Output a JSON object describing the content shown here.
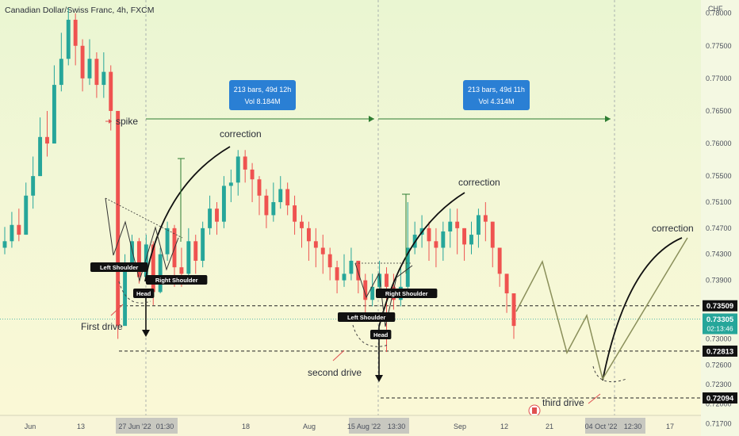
{
  "chart_data": {
    "type": "candlestick",
    "title": "Canadian Dollar/Swiss Franc, 4h, FXCM",
    "currency": "CHF",
    "ylim": [
      0.7151,
      0.7813
    ],
    "y_ticks": [
      "0.78000",
      "0.77500",
      "0.77000",
      "0.76500",
      "0.76000",
      "0.75500",
      "0.75100",
      "0.74700",
      "0.74300",
      "0.73900",
      "0.73500",
      "0.73000",
      "0.72600",
      "0.72300",
      "0.72000",
      "0.71700"
    ],
    "x_ticks": [
      "Jun",
      "13",
      "27 Jun '22",
      "01:30",
      "18",
      "Aug",
      "15 Aug '22",
      "13:30",
      "Sep",
      "12",
      "21",
      "04 Oct '22",
      "12:30",
      "17"
    ],
    "price_path": [
      [
        0.745,
        0.7472,
        0.743
      ],
      [
        0.7475,
        0.7495,
        0.744
      ],
      [
        0.746,
        0.75,
        0.745
      ],
      [
        0.752,
        0.754,
        0.746
      ],
      [
        0.755,
        0.758,
        0.75
      ],
      [
        0.761,
        0.764,
        0.755
      ],
      [
        0.76,
        0.765,
        0.758
      ],
      [
        0.769,
        0.772,
        0.76
      ],
      [
        0.773,
        0.777,
        0.768
      ],
      [
        0.779,
        0.7808,
        0.772
      ],
      [
        0.775,
        0.78,
        0.772
      ],
      [
        0.77,
        0.776,
        0.768
      ],
      [
        0.773,
        0.776,
        0.769
      ],
      [
        0.769,
        0.774,
        0.767
      ],
      [
        0.771,
        0.774,
        0.767
      ],
      [
        0.765,
        0.772,
        0.762
      ],
      [
        0.732,
        0.765,
        0.73
      ],
      [
        0.7415,
        0.743,
        0.7395
      ],
      [
        0.745,
        0.746,
        0.741
      ],
      [
        0.7395,
        0.7455,
        0.7385
      ],
      [
        0.7445,
        0.746,
        0.739
      ],
      [
        0.7372,
        0.745,
        0.7352
      ],
      [
        0.743,
        0.744,
        0.737
      ],
      [
        0.747,
        0.748,
        0.742
      ],
      [
        0.741,
        0.7475,
        0.738
      ],
      [
        0.74,
        0.744,
        0.738
      ],
      [
        0.745,
        0.747,
        0.7395
      ],
      [
        0.742,
        0.746,
        0.74
      ],
      [
        0.747,
        0.748,
        0.741
      ],
      [
        0.75,
        0.752,
        0.746
      ],
      [
        0.748,
        0.751,
        0.746
      ],
      [
        0.7535,
        0.755,
        0.747
      ],
      [
        0.754,
        0.756,
        0.751
      ],
      [
        0.758,
        0.759,
        0.752
      ],
      [
        0.756,
        0.759,
        0.754
      ],
      [
        0.7545,
        0.757,
        0.751
      ],
      [
        0.752,
        0.755,
        0.749
      ],
      [
        0.749,
        0.753,
        0.747
      ],
      [
        0.751,
        0.754,
        0.748
      ],
      [
        0.753,
        0.755,
        0.75
      ],
      [
        0.7505,
        0.754,
        0.749
      ],
      [
        0.748,
        0.752,
        0.746
      ],
      [
        0.747,
        0.749,
        0.744
      ],
      [
        0.745,
        0.748,
        0.742
      ],
      [
        0.744,
        0.747,
        0.741
      ],
      [
        0.743,
        0.746,
        0.74
      ],
      [
        0.741,
        0.744,
        0.739
      ],
      [
        0.739,
        0.742,
        0.737
      ],
      [
        0.74,
        0.743,
        0.738
      ],
      [
        0.742,
        0.744,
        0.739
      ],
      [
        0.739,
        0.742,
        0.737
      ],
      [
        0.736,
        0.74,
        0.7335
      ],
      [
        0.738,
        0.74,
        0.735
      ],
      [
        0.74,
        0.742,
        0.737
      ],
      [
        0.738,
        0.741,
        0.728
      ],
      [
        0.736,
        0.74,
        0.7345
      ],
      [
        0.738,
        0.741,
        0.735
      ],
      [
        0.744,
        0.751,
        0.737
      ],
      [
        0.746,
        0.748,
        0.743
      ],
      [
        0.747,
        0.749,
        0.744
      ],
      [
        0.745,
        0.748,
        0.742
      ],
      [
        0.744,
        0.747,
        0.741
      ],
      [
        0.7465,
        0.748,
        0.742
      ],
      [
        0.748,
        0.75,
        0.744
      ],
      [
        0.747,
        0.75,
        0.743
      ],
      [
        0.7445,
        0.747,
        0.742
      ],
      [
        0.746,
        0.748,
        0.743
      ],
      [
        0.749,
        0.75,
        0.744
      ],
      [
        0.748,
        0.751,
        0.745
      ],
      [
        0.744,
        0.748,
        0.741
      ],
      [
        0.74,
        0.744,
        0.738
      ],
      [
        0.737,
        0.74,
        0.734
      ],
      [
        0.732,
        0.737,
        0.73
      ]
    ],
    "levels": [
      "0.73509",
      "0.72813",
      "0.72094"
    ],
    "last_price": "0.73305",
    "countdown": "02:13:46",
    "measure_boxes": [
      {
        "line1": "213 bars, 49d 12h",
        "line2": "Vol 8.184M"
      },
      {
        "line1": "213 bars, 49d 11h",
        "line2": "Vol 4.314M"
      }
    ],
    "annotations": {
      "spike": "spike",
      "correction": "correction",
      "first_drive": "First drive",
      "second_drive": "second drive",
      "third_drive": "third drive",
      "left_shoulder": "Left Shoulder",
      "right_shoulder": "Right Shoulder",
      "head": "Head"
    },
    "colors": {
      "up": "#26a69a",
      "down": "#ef5350",
      "measure_box": "#2a7fd4",
      "projection": "#8a8f5a",
      "last_price_tag": "#26a69a",
      "arrow_green": "#2e7d32",
      "arrow_red": "#e05050"
    },
    "grid": false
  }
}
